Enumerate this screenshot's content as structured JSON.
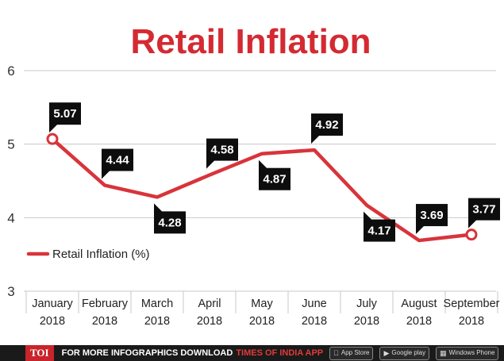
{
  "chart_data": {
    "type": "line",
    "title": "Retail Inflation",
    "categories": [
      [
        "January",
        "2018"
      ],
      [
        "February",
        "2018"
      ],
      [
        "March",
        "2018"
      ],
      [
        "April",
        "2018"
      ],
      [
        "May",
        "2018"
      ],
      [
        "June",
        "2018"
      ],
      [
        "July",
        "2018"
      ],
      [
        "August",
        "2018"
      ],
      [
        "September",
        "2018"
      ]
    ],
    "series": [
      {
        "name": "Retail Inflation (%)",
        "values": [
          5.07,
          4.44,
          4.28,
          4.58,
          4.87,
          4.92,
          4.17,
          3.69,
          3.77
        ],
        "labels": [
          "5.07",
          "4.44",
          "4.28",
          "4.58",
          "4.87",
          "4.92",
          "4.17",
          "3.69",
          "3.77"
        ]
      }
    ],
    "ylim": [
      3,
      6
    ],
    "yticks": [
      "3",
      "4",
      "5",
      "6"
    ],
    "grid": true,
    "legend_position": "middle-left",
    "line_color": "#d8343b"
  },
  "footer": {
    "logo": "TOI",
    "message": "FOR MORE  INFOGRAPHICS DOWNLOAD",
    "brand": "TIMES OF INDIA APP",
    "stores": [
      {
        "icon": "apple-icon",
        "text": "App Store"
      },
      {
        "icon": "google-play-icon",
        "text": "Google play"
      },
      {
        "icon": "windows-icon",
        "text": "Windows Phone"
      }
    ]
  }
}
